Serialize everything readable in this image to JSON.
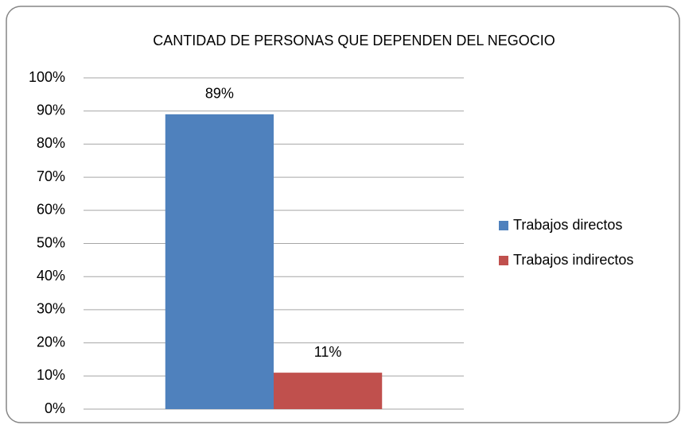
{
  "chart_data": {
    "type": "bar",
    "title": "CANTIDAD DE PERSONAS QUE DEPENDEN DEL NEGOCIO",
    "categories": [
      null
    ],
    "series": [
      {
        "name": "Trabajos directos",
        "color": "#4f81bd",
        "values": [
          89
        ],
        "value_labels": [
          "89%"
        ]
      },
      {
        "name": "Trabajos indirectos",
        "color": "#c0504d",
        "values": [
          11
        ],
        "value_labels": [
          "11%"
        ]
      }
    ],
    "ylim": [
      0,
      100
    ],
    "yticks": [
      {
        "value": 0,
        "label": "0%"
      },
      {
        "value": 10,
        "label": "10%"
      },
      {
        "value": 20,
        "label": "20%"
      },
      {
        "value": 30,
        "label": "30%"
      },
      {
        "value": 40,
        "label": "40%"
      },
      {
        "value": 50,
        "label": "50%"
      },
      {
        "value": 60,
        "label": "60%"
      },
      {
        "value": 70,
        "label": "70%"
      },
      {
        "value": 80,
        "label": "80%"
      },
      {
        "value": 90,
        "label": "90%"
      },
      {
        "value": 100,
        "label": "100%"
      }
    ],
    "grid": true,
    "legend": "right"
  }
}
